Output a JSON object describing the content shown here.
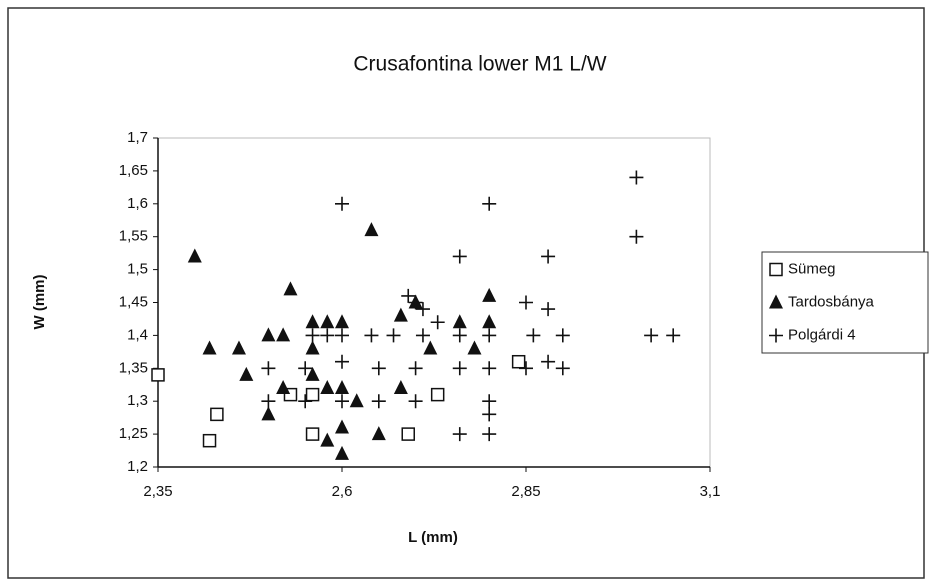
{
  "chart_data": {
    "type": "scatter",
    "title": "Crusafontina lower M1 L/W",
    "x_label": "L (mm)",
    "y_label": "W (mm)",
    "xlim": [
      2.35,
      3.1
    ],
    "xticks": [
      {
        "value": 2.35,
        "label": "2,35"
      },
      {
        "value": 2.6,
        "label": "2,6"
      },
      {
        "value": 2.85,
        "label": "2,85"
      },
      {
        "value": 3.1,
        "label": "3,1"
      }
    ],
    "ylim": [
      1.2,
      1.7
    ],
    "yticks": [
      {
        "value": 1.2,
        "label": "1,2"
      },
      {
        "value": 1.25,
        "label": "1,25"
      },
      {
        "value": 1.3,
        "label": "1,3"
      },
      {
        "value": 1.35,
        "label": "1,35"
      },
      {
        "value": 1.4,
        "label": "1,4"
      },
      {
        "value": 1.45,
        "label": "1,45"
      },
      {
        "value": 1.5,
        "label": "1,5"
      },
      {
        "value": 1.55,
        "label": "1,55"
      },
      {
        "value": 1.6,
        "label": "1,6"
      },
      {
        "value": 1.65,
        "label": "1,65"
      },
      {
        "value": 1.7,
        "label": "1,7"
      }
    ],
    "legend": "right",
    "series": [
      {
        "name": "Sümeg",
        "marker": "square",
        "color": "#111111",
        "x": [
          2.35,
          2.42,
          2.43,
          2.53,
          2.56,
          2.56,
          2.69,
          2.73,
          2.84
        ],
        "values": [
          1.34,
          1.24,
          1.28,
          1.31,
          1.31,
          1.25,
          1.25,
          1.31,
          1.36
        ]
      },
      {
        "name": "Tardosbánya",
        "marker": "triangle",
        "color": "#111111",
        "x": [
          2.4,
          2.42,
          2.46,
          2.47,
          2.5,
          2.52,
          2.53,
          2.5,
          2.52,
          2.56,
          2.56,
          2.56,
          2.58,
          2.6,
          2.58,
          2.6,
          2.58,
          2.6,
          2.6,
          2.62,
          2.64,
          2.65,
          2.68,
          2.7,
          2.68,
          2.72,
          2.76,
          2.78,
          2.8,
          2.8
        ],
        "values": [
          1.52,
          1.38,
          1.38,
          1.34,
          1.4,
          1.4,
          1.47,
          1.28,
          1.32,
          1.42,
          1.38,
          1.34,
          1.42,
          1.42,
          1.32,
          1.32,
          1.24,
          1.26,
          1.22,
          1.3,
          1.56,
          1.25,
          1.43,
          1.45,
          1.32,
          1.38,
          1.42,
          1.38,
          1.46,
          1.42
        ]
      },
      {
        "name": "Polgárdi 4",
        "marker": "plus",
        "color": "#111111",
        "x": [
          3.0,
          3.0,
          3.02,
          3.05,
          2.6,
          2.8,
          2.76,
          2.88,
          2.85,
          2.88,
          2.86,
          2.9,
          2.85,
          2.88,
          2.9,
          2.8,
          2.8,
          2.8,
          2.8,
          2.8,
          2.76,
          2.76,
          2.76,
          2.73,
          2.71,
          2.69,
          2.7,
          2.71,
          2.67,
          2.65,
          2.65,
          2.7,
          2.7,
          2.6,
          2.6,
          2.6,
          2.58,
          2.56,
          2.55,
          2.55,
          2.5,
          2.5,
          2.64
        ],
        "values": [
          1.64,
          1.55,
          1.4,
          1.4,
          1.6,
          1.6,
          1.52,
          1.52,
          1.45,
          1.44,
          1.4,
          1.4,
          1.35,
          1.36,
          1.35,
          1.4,
          1.35,
          1.3,
          1.28,
          1.25,
          1.25,
          1.35,
          1.4,
          1.42,
          1.4,
          1.46,
          1.45,
          1.44,
          1.4,
          1.35,
          1.3,
          1.35,
          1.3,
          1.4,
          1.36,
          1.3,
          1.4,
          1.4,
          1.35,
          1.3,
          1.35,
          1.3,
          1.4
        ]
      }
    ]
  }
}
